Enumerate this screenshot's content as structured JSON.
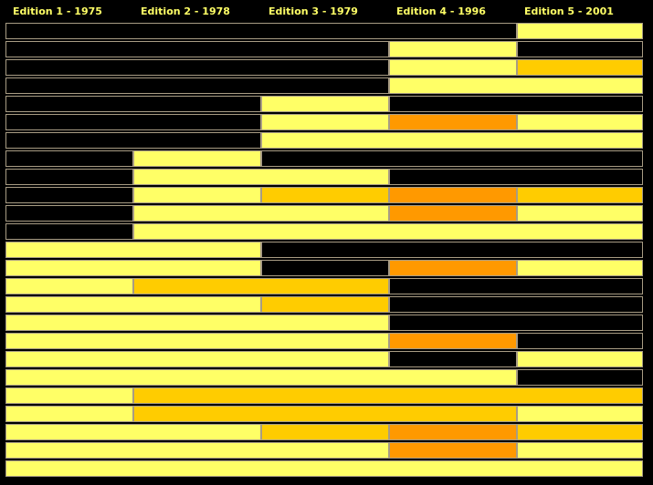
{
  "editions": [
    {
      "label": "Edition 1 - 1975"
    },
    {
      "label": "Edition 2 - 1978"
    },
    {
      "label": "Edition 3 - 1979"
    },
    {
      "label": "Edition 4 - 1996"
    },
    {
      "label": "Edition 5 - 2001"
    }
  ],
  "colors": {
    "absent": "#000000",
    "shade_1": "#ffff66",
    "shade_2": "#ffcc00",
    "shade_3": "#ff9900",
    "border": "#a89c84",
    "header_text": "#ffff66",
    "background": "#000000"
  },
  "rows": [
    [
      0,
      0,
      0,
      0,
      1
    ],
    [
      0,
      0,
      0,
      1,
      0
    ],
    [
      0,
      0,
      0,
      1,
      2
    ],
    [
      0,
      0,
      0,
      1,
      1
    ],
    [
      0,
      0,
      1,
      0,
      0
    ],
    [
      0,
      0,
      1,
      3,
      1
    ],
    [
      0,
      0,
      1,
      1,
      1
    ],
    [
      0,
      1,
      0,
      0,
      0
    ],
    [
      0,
      1,
      1,
      0,
      0
    ],
    [
      0,
      1,
      2,
      3,
      2
    ],
    [
      0,
      1,
      1,
      3,
      1
    ],
    [
      0,
      1,
      1,
      1,
      1
    ],
    [
      1,
      1,
      0,
      0,
      0
    ],
    [
      1,
      1,
      0,
      3,
      1
    ],
    [
      1,
      2,
      2,
      0,
      0
    ],
    [
      1,
      1,
      2,
      0,
      0
    ],
    [
      1,
      1,
      1,
      0,
      0
    ],
    [
      1,
      1,
      1,
      3,
      0
    ],
    [
      1,
      1,
      1,
      0,
      1
    ],
    [
      1,
      1,
      1,
      1,
      0
    ],
    [
      1,
      2,
      2,
      2,
      2
    ],
    [
      1,
      2,
      2,
      2,
      1
    ],
    [
      1,
      1,
      2,
      3,
      2
    ],
    [
      1,
      1,
      1,
      3,
      1
    ],
    [
      1,
      1,
      1,
      1,
      1
    ]
  ]
}
